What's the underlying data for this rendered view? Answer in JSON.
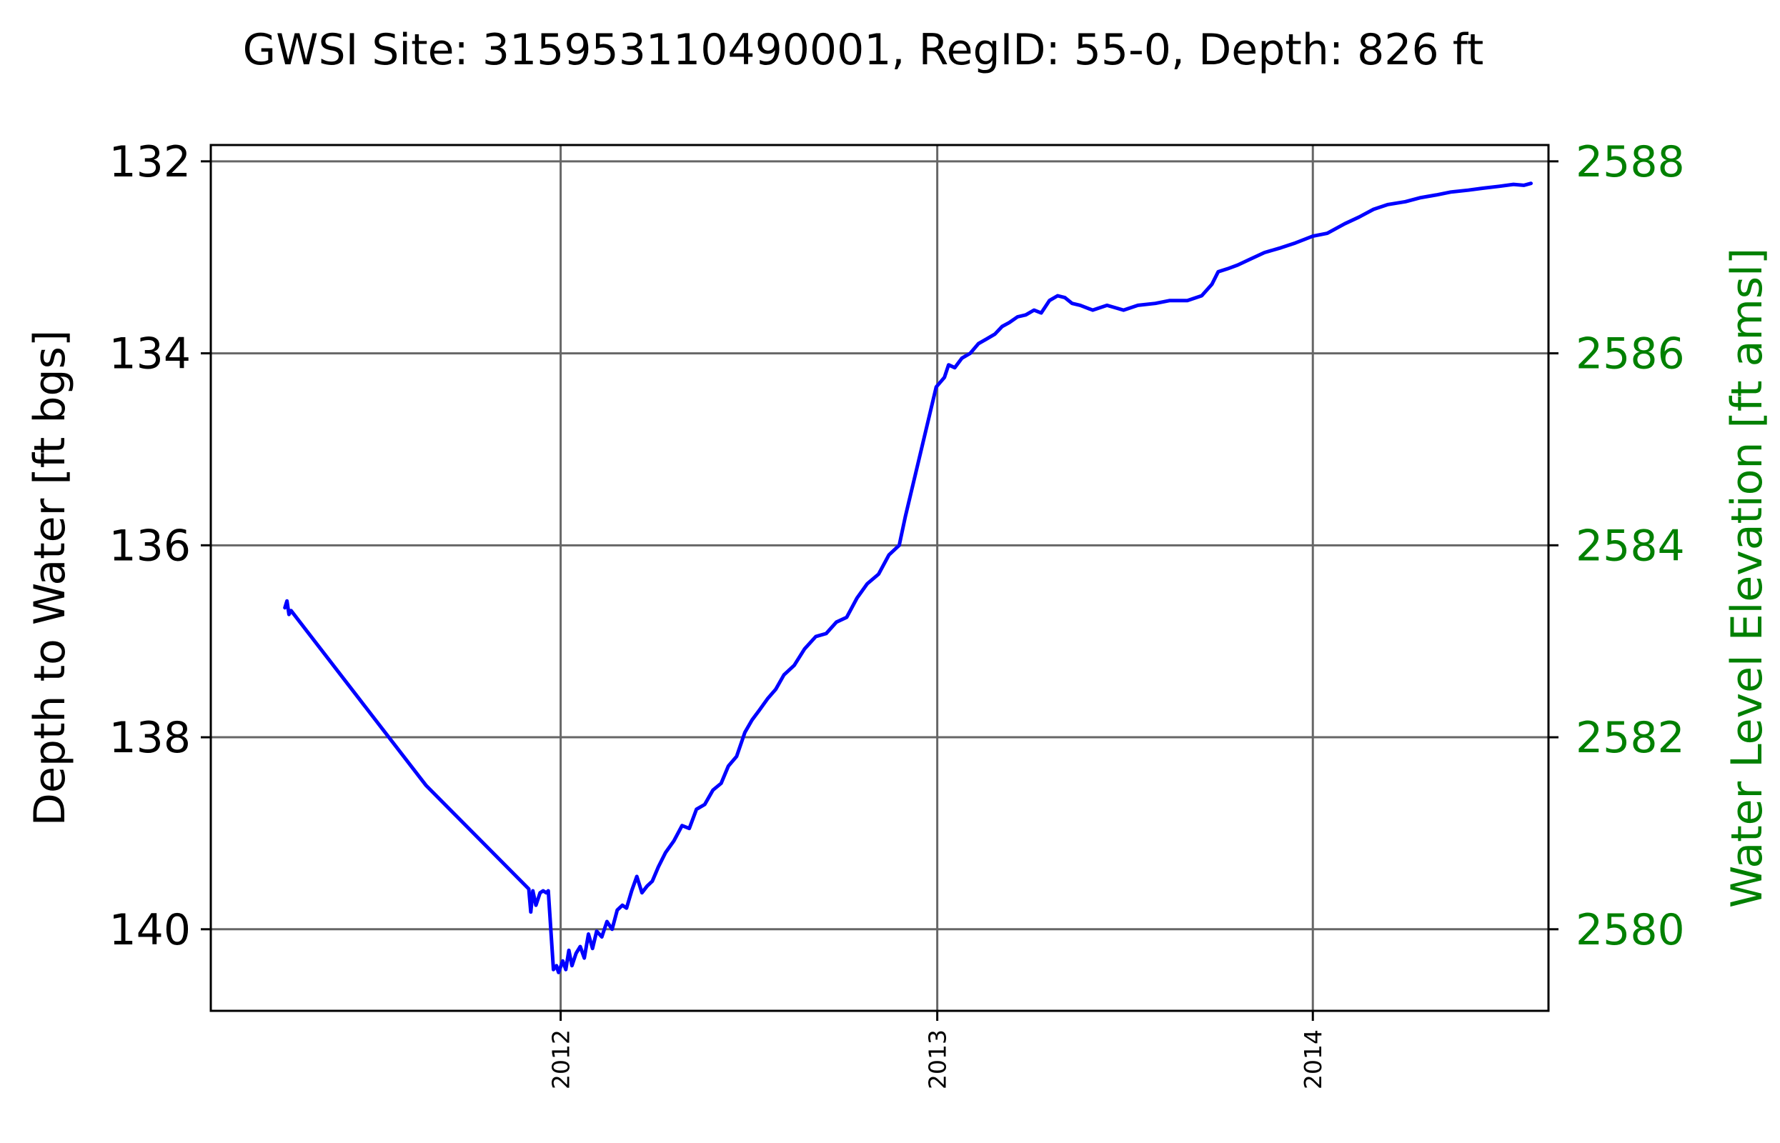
{
  "chart_data": {
    "type": "line",
    "title": "GWSI Site: 315953110490001, RegID: 55-0, Depth: 826 ft",
    "xlabel": "",
    "ylabel": "Depth to Water [ft bgs]",
    "y2label": "Water Level Elevation [ft amsl]",
    "y_inverted": true,
    "xlim": [
      "2011-01-26",
      "2014-08-18"
    ],
    "ylim": [
      140.85,
      131.83
    ],
    "y2lim": [
      2579.15,
      2588.17
    ],
    "x_ticks": [
      "2012",
      "2013",
      "2014"
    ],
    "y_ticks": [
      "132",
      "134",
      "136",
      "138",
      "140"
    ],
    "y2_ticks": [
      "2588",
      "2586",
      "2584",
      "2582",
      "2580"
    ],
    "grid": true,
    "colors": {
      "series": "#0000ff",
      "right_axis": "#008000",
      "grid": "#666666",
      "axes": "#000000"
    },
    "series": [
      {
        "x": [
          "2011-04-08",
          "2011-04-10",
          "2011-04-12",
          "2011-04-14",
          "2011-08-23",
          "2011-12-01",
          "2011-12-03",
          "2011-12-05",
          "2011-12-08",
          "2011-12-12",
          "2011-12-15",
          "2011-12-18",
          "2011-12-20",
          "2011-12-25",
          "2011-12-28",
          "2011-12-29",
          "2011-12-30",
          "2012-01-03",
          "2012-01-06",
          "2012-01-09",
          "2012-01-12",
          "2012-01-16",
          "2012-01-20",
          "2012-01-24",
          "2012-01-28",
          "2012-02-01",
          "2012-02-05",
          "2012-02-10",
          "2012-02-15",
          "2012-02-20",
          "2012-02-25",
          "2012-03-01",
          "2012-03-05",
          "2012-03-10",
          "2012-03-15",
          "2012-03-20",
          "2012-03-25",
          "2012-03-30",
          "2012-04-05",
          "2012-04-12",
          "2012-04-20",
          "2012-04-28",
          "2012-05-05",
          "2012-05-12",
          "2012-05-20",
          "2012-05-28",
          "2012-06-05",
          "2012-06-12",
          "2012-06-20",
          "2012-06-28",
          "2012-07-05",
          "2012-07-12",
          "2012-07-20",
          "2012-07-28",
          "2012-08-05",
          "2012-08-15",
          "2012-08-25",
          "2012-09-05",
          "2012-09-15",
          "2012-09-25",
          "2012-10-05",
          "2012-10-15",
          "2012-10-25",
          "2012-11-05",
          "2012-11-15",
          "2012-11-25",
          "2012-12-01",
          "2012-12-31",
          "2013-01-08",
          "2013-01-12",
          "2013-01-18",
          "2013-01-25",
          "2013-02-02",
          "2013-02-10",
          "2013-02-18",
          "2013-02-26",
          "2013-03-05",
          "2013-03-12",
          "2013-03-20",
          "2013-03-28",
          "2013-04-05",
          "2013-04-12",
          "2013-04-20",
          "2013-04-28",
          "2013-05-05",
          "2013-05-12",
          "2013-05-20",
          "2013-06-01",
          "2013-06-15",
          "2013-07-01",
          "2013-07-15",
          "2013-08-01",
          "2013-08-15",
          "2013-09-01",
          "2013-09-15",
          "2013-09-25",
          "2013-10-01",
          "2013-10-10",
          "2013-10-20",
          "2013-11-01",
          "2013-11-15",
          "2013-12-01",
          "2013-12-15",
          "2014-01-01",
          "2014-01-15",
          "2014-02-01",
          "2014-02-15",
          "2014-03-01",
          "2014-03-15",
          "2014-04-01",
          "2014-04-15",
          "2014-05-01",
          "2014-05-15",
          "2014-06-01",
          "2014-06-15",
          "2014-07-01",
          "2014-07-15",
          "2014-07-25",
          "2014-08-01"
        ],
        "y": [
          136.65,
          136.58,
          136.72,
          136.68,
          138.5,
          139.58,
          139.82,
          139.6,
          139.75,
          139.62,
          139.6,
          139.62,
          139.6,
          140.42,
          140.38,
          140.42,
          140.45,
          140.33,
          140.42,
          140.22,
          140.38,
          140.25,
          140.18,
          140.3,
          140.05,
          140.2,
          140.02,
          140.08,
          139.92,
          140.0,
          139.8,
          139.75,
          139.78,
          139.6,
          139.45,
          139.62,
          139.55,
          139.5,
          139.35,
          139.2,
          139.08,
          138.92,
          138.95,
          138.75,
          138.7,
          138.55,
          138.48,
          138.3,
          138.2,
          137.95,
          137.82,
          137.72,
          137.6,
          137.5,
          137.35,
          137.25,
          137.08,
          136.95,
          136.92,
          136.8,
          136.75,
          136.55,
          136.4,
          136.3,
          136.1,
          136.0,
          135.7,
          134.35,
          134.25,
          134.12,
          134.15,
          134.05,
          134.0,
          133.9,
          133.85,
          133.8,
          133.72,
          133.68,
          133.62,
          133.6,
          133.55,
          133.58,
          133.45,
          133.4,
          133.42,
          133.48,
          133.5,
          133.55,
          133.5,
          133.55,
          133.5,
          133.48,
          133.45,
          133.45,
          133.4,
          133.28,
          133.15,
          133.12,
          133.08,
          133.02,
          132.95,
          132.9,
          132.85,
          132.78,
          132.75,
          132.65,
          132.58,
          132.5,
          132.45,
          132.42,
          132.38,
          132.35,
          132.32,
          132.3,
          132.28,
          132.26,
          132.24,
          132.25,
          132.23
        ]
      }
    ]
  }
}
